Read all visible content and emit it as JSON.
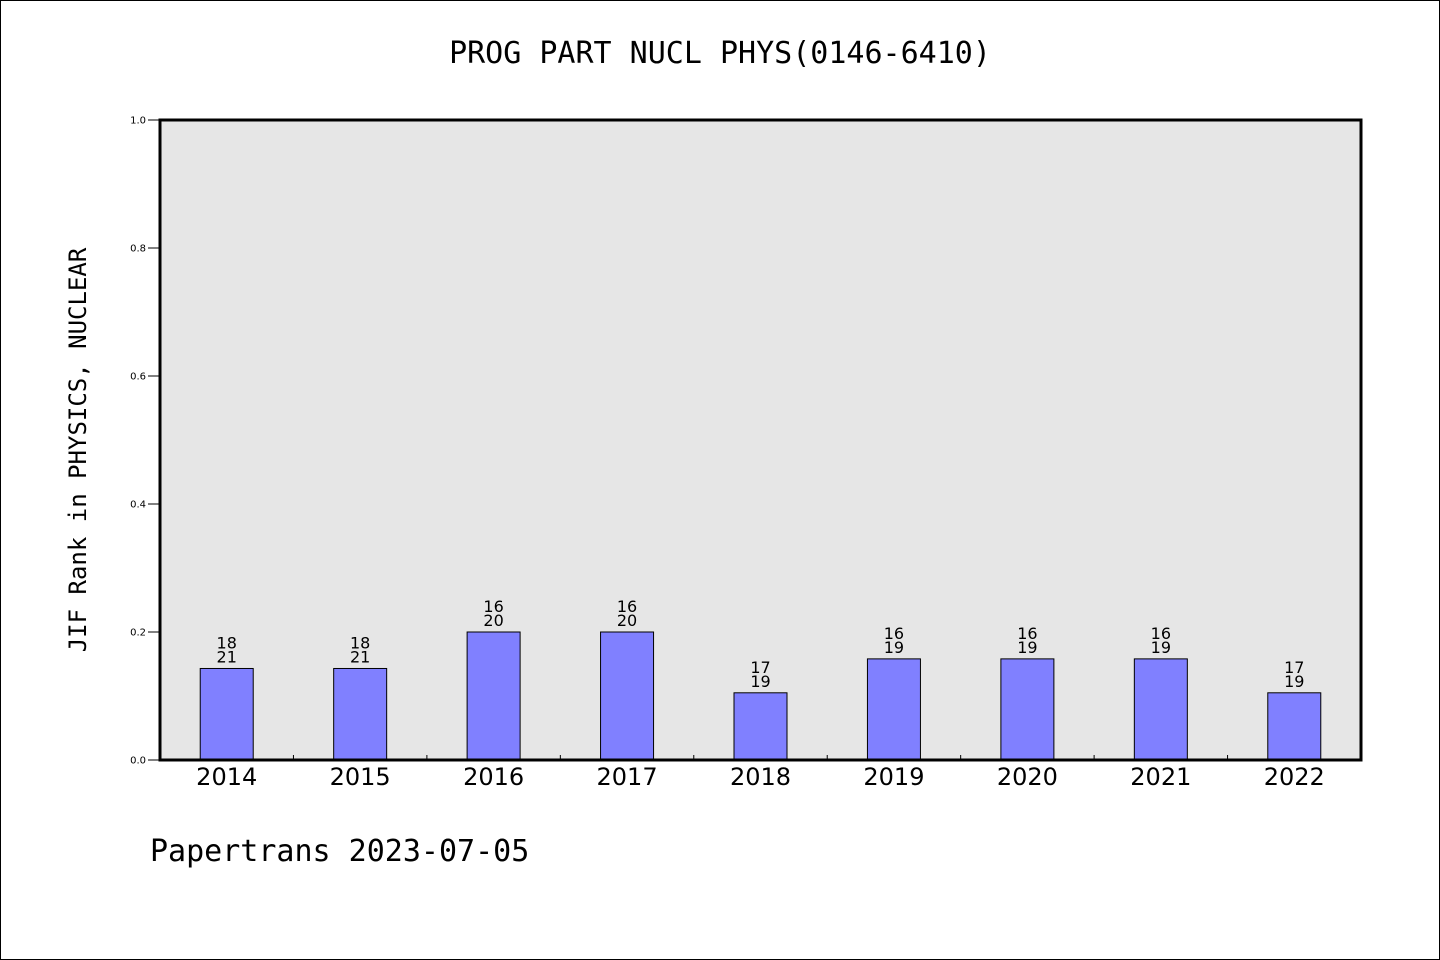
{
  "chart_data": {
    "type": "bar",
    "title": "PROG PART NUCL PHYS(0146-6410)",
    "xlabel": "",
    "ylabel": "JIF Rank in PHYSICS, NUCLEAR",
    "ylim": [
      0,
      1.0
    ],
    "yticks": [
      "0.0",
      "0.2",
      "0.4",
      "0.6",
      "0.8",
      "1.0"
    ],
    "categories": [
      "2014",
      "2015",
      "2016",
      "2017",
      "2018",
      "2019",
      "2020",
      "2021",
      "2022"
    ],
    "values": [
      0.143,
      0.143,
      0.2,
      0.2,
      0.105,
      0.158,
      0.158,
      0.158,
      0.105
    ],
    "rank": [
      "18",
      "18",
      "16",
      "16",
      "17",
      "16",
      "16",
      "16",
      "17"
    ],
    "total": [
      "21",
      "21",
      "20",
      "20",
      "19",
      "19",
      "19",
      "19",
      "19"
    ],
    "grid": false,
    "colors": {
      "bar": "#8080ff",
      "plot_bg": "#e6e6e6",
      "axis": "#000000"
    }
  },
  "footer": "Papertrans 2023-07-05"
}
